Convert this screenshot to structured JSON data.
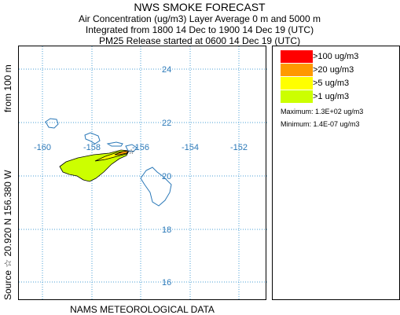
{
  "header": {
    "title": "NWS SMOKE FORECAST",
    "line1": "Air Concentration (ug/m3) Layer Average    0 m and  5000 m",
    "line2": "Integrated from 1800 14 Dec to 1900 14 Dec 19 (UTC)",
    "line3": "PM25 Release started at 0600 14 Dec 19 (UTC)"
  },
  "side_labels": {
    "source": "Source ☆  20.920  N 156.380  W",
    "height": "from  100 m"
  },
  "map": {
    "lat_labels": [
      "24",
      "22",
      "20",
      "18",
      "16"
    ],
    "lon_labels": [
      "-160",
      "-158",
      "-156",
      "-154",
      "-152"
    ],
    "grid_color": "#4a9fd4",
    "coast_color": "#2a78b8"
  },
  "legend": {
    "items": [
      {
        "label": ">100 ug/m3",
        "color": "#ff0000"
      },
      {
        "label": ">20 ug/m3",
        "color": "#ff9900"
      },
      {
        "label": ">5 ug/m3",
        "color": "#ffff00"
      },
      {
        "label": ">1 ug/m3",
        "color": "#ccff00"
      }
    ],
    "maximum": "Maximum: 1.3E+02 ug/m3",
    "minimum": "Minimum: 1.4E-07 ug/m3"
  },
  "footer": "NAMS METEOROLOGICAL DATA"
}
